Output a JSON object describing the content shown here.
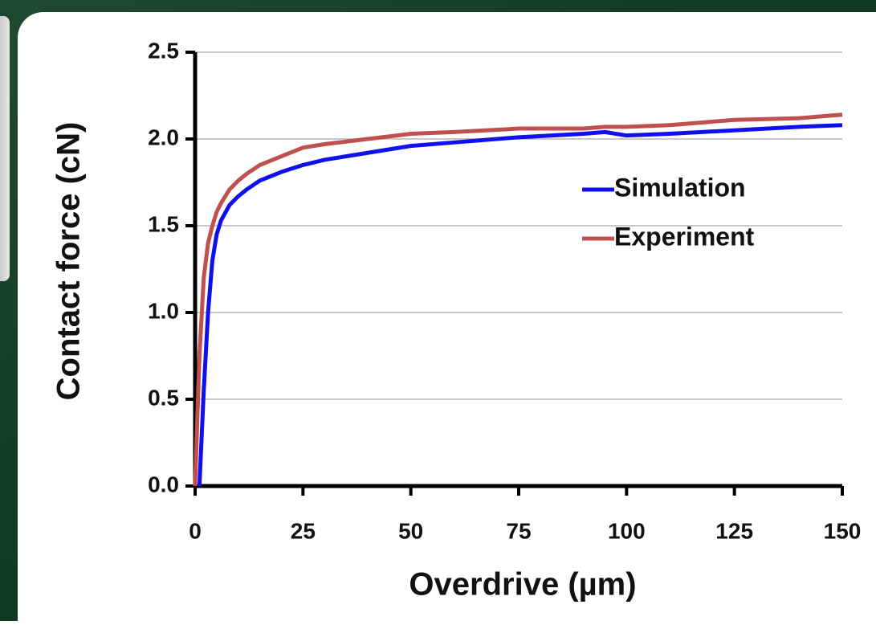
{
  "chart_data": {
    "type": "line",
    "x_label": "Overdrive (µm)",
    "y_label": "Contact force  (cN)",
    "x": [
      0,
      1,
      2,
      3,
      4,
      5,
      6,
      8,
      10,
      12,
      15,
      20,
      25,
      30,
      40,
      50,
      60,
      75,
      90,
      95,
      100,
      110,
      125,
      140,
      150
    ],
    "series": [
      {
        "name": "Simulation",
        "color": "#1010ee",
        "values": [
          null,
          0,
          0.55,
          1.0,
          1.3,
          1.45,
          1.53,
          1.62,
          1.67,
          1.71,
          1.76,
          1.81,
          1.85,
          1.88,
          1.92,
          1.96,
          1.98,
          2.01,
          2.03,
          2.04,
          2.02,
          2.03,
          2.05,
          2.07,
          2.08
        ]
      },
      {
        "name": "Experiment",
        "color": "#c0504d",
        "values": [
          0,
          0.75,
          1.2,
          1.4,
          1.5,
          1.58,
          1.63,
          1.71,
          1.76,
          1.8,
          1.85,
          1.9,
          1.95,
          1.97,
          2.0,
          2.03,
          2.04,
          2.06,
          2.06,
          2.07,
          2.07,
          2.08,
          2.11,
          2.12,
          2.14
        ]
      }
    ],
    "xlim": [
      0,
      150
    ],
    "xticks": [
      0,
      25,
      50,
      75,
      100,
      125,
      150
    ],
    "ylim": [
      0,
      2.5
    ],
    "yticks": [
      {
        "value": 0,
        "label": "0.0"
      },
      0.5,
      {
        "value": 1,
        "label": "1.0"
      },
      1.5,
      {
        "value": 2,
        "label": "2.0"
      },
      2.5
    ],
    "grid": true
  }
}
